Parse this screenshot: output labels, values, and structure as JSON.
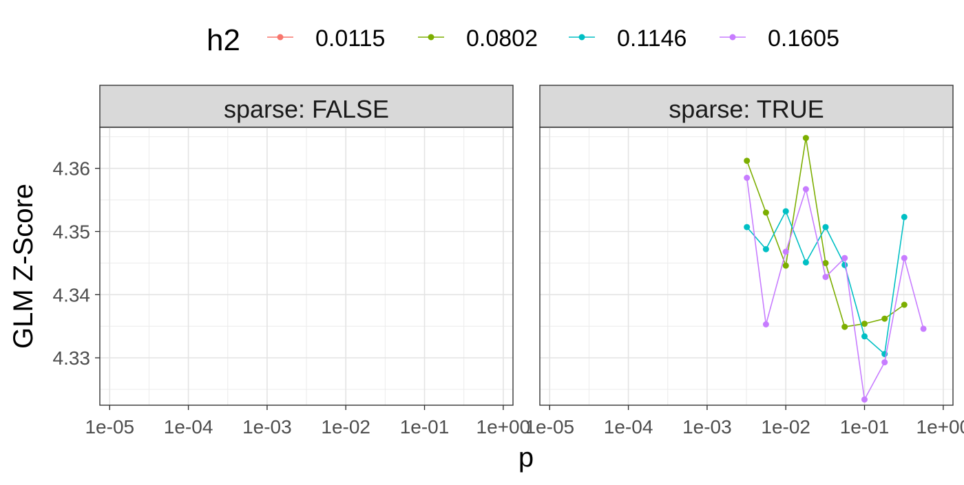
{
  "chart_data": {
    "type": "line",
    "legend": {
      "title": "h2",
      "position": "top",
      "entries": [
        {
          "label": "0.0115",
          "color": "#F8766D"
        },
        {
          "label": "0.0802",
          "color": "#7CAE00"
        },
        {
          "label": "0.1146",
          "color": "#00BFC4"
        },
        {
          "label": "0.1605",
          "color": "#C77CFF"
        }
      ]
    },
    "xlabel": "p",
    "ylabel": "GLM Z-Score",
    "x_scale": "log10",
    "xlim": [
      7.5e-06,
      1.33
    ],
    "ylim": [
      4.3225,
      4.3665
    ],
    "x_ticks": [
      1e-05,
      0.0001,
      0.001,
      0.01,
      0.1,
      1
    ],
    "x_tick_labels": [
      "1e-05",
      "1e-04",
      "1e-03",
      "1e-02",
      "1e-01",
      "1e+00"
    ],
    "y_ticks": [
      4.33,
      4.34,
      4.35,
      4.36
    ],
    "y_tick_labels": [
      "4.33",
      "4.34",
      "4.35",
      "4.36"
    ],
    "grid": true,
    "panels": [
      {
        "strip": "sparse: FALSE",
        "series": []
      },
      {
        "strip": "sparse: TRUE",
        "series": [
          {
            "name": "0.0802",
            "color": "#7CAE00",
            "x": [
              0.0032,
              0.0056,
              0.01,
              0.018,
              0.032,
              0.056,
              0.1,
              0.18,
              0.32
            ],
            "y": [
              4.3612,
              4.353,
              4.3446,
              4.3648,
              4.345,
              4.3349,
              4.3354,
              4.3362,
              4.3384
            ]
          },
          {
            "name": "0.1146",
            "color": "#00BFC4",
            "x": [
              0.0032,
              0.0056,
              0.01,
              0.018,
              0.032,
              0.056,
              0.1,
              0.18,
              0.32
            ],
            "y": [
              4.3507,
              4.3472,
              4.3532,
              4.3451,
              4.3507,
              4.3447,
              4.3334,
              4.3306,
              4.3523
            ]
          },
          {
            "name": "0.1605",
            "color": "#C77CFF",
            "x": [
              0.0032,
              0.0056,
              0.01,
              0.018,
              0.032,
              0.056,
              0.1,
              0.18,
              0.32,
              0.56
            ],
            "y": [
              4.3585,
              4.3353,
              4.3468,
              4.3567,
              4.3428,
              4.3458,
              4.3234,
              4.3293,
              4.3458,
              4.3346
            ]
          }
        ]
      }
    ]
  }
}
